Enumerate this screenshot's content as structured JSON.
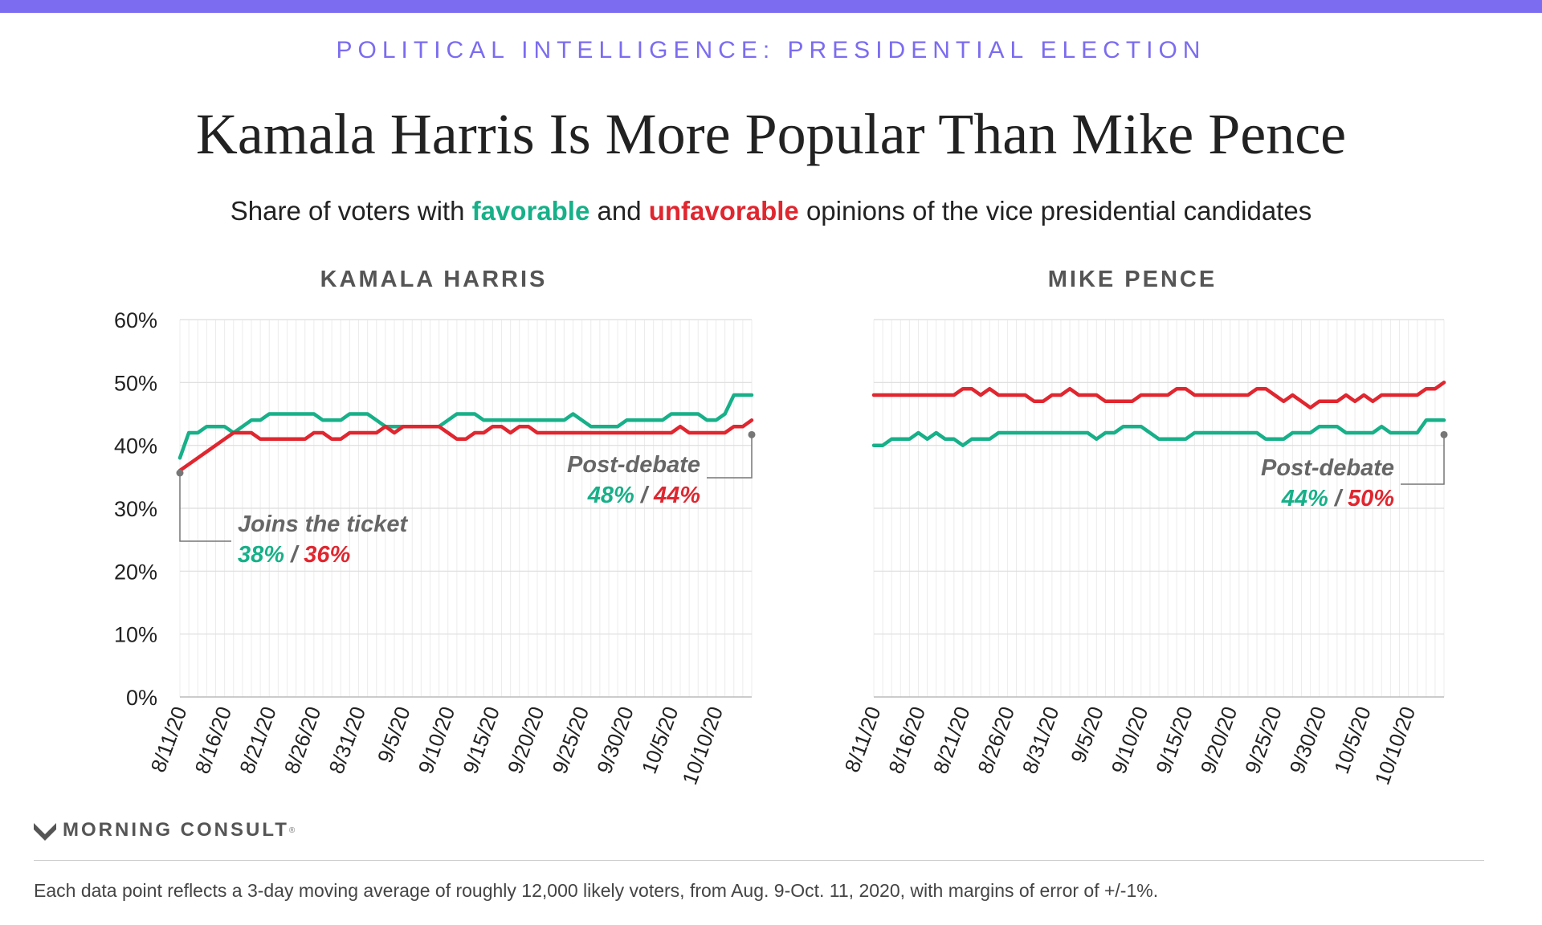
{
  "header": {
    "kicker": "POLITICAL INTELLIGENCE: PRESIDENTIAL ELECTION",
    "title": "Kamala Harris Is More Popular Than Mike Pence",
    "subtitle_pre": "Share of voters with ",
    "subtitle_fav": "favorable",
    "subtitle_mid": " and ",
    "subtitle_unfav": "unfavorable",
    "subtitle_post": " opinions of the vice presidential candidates"
  },
  "colors": {
    "favorable": "#17b088",
    "unfavorable": "#e0262f",
    "accent": "#7b6cf0",
    "annotation": "#666666"
  },
  "chart_data": [
    {
      "type": "line",
      "title": "KAMALA HARRIS",
      "ylim": [
        0,
        60
      ],
      "yticks": [
        "0%",
        "10%",
        "20%",
        "30%",
        "40%",
        "50%",
        "60%"
      ],
      "x_ticklabels": [
        "8/11/20",
        "8/16/20",
        "8/21/20",
        "8/26/20",
        "8/31/20",
        "9/5/20",
        "9/10/20",
        "9/15/20",
        "9/20/20",
        "9/25/20",
        "9/30/20",
        "10/5/20",
        "10/10/20"
      ],
      "grid": true,
      "series": [
        {
          "name": "favorable",
          "values": [
            38,
            42,
            42,
            43,
            43,
            43,
            42,
            43,
            44,
            44,
            45,
            45,
            45,
            45,
            45,
            45,
            44,
            44,
            44,
            45,
            45,
            45,
            44,
            43,
            43,
            43,
            43,
            43,
            43,
            43,
            44,
            45,
            45,
            45,
            44,
            44,
            44,
            44,
            44,
            44,
            44,
            44,
            44,
            44,
            45,
            44,
            43,
            43,
            43,
            43,
            44,
            44,
            44,
            44,
            44,
            45,
            45,
            45,
            45,
            44,
            44,
            45,
            48,
            48,
            48
          ]
        },
        {
          "name": "unfavorable",
          "values": [
            36,
            37,
            38,
            39,
            40,
            41,
            42,
            42,
            42,
            41,
            41,
            41,
            41,
            41,
            41,
            42,
            42,
            41,
            41,
            42,
            42,
            42,
            42,
            43,
            42,
            43,
            43,
            43,
            43,
            43,
            42,
            41,
            41,
            42,
            42,
            43,
            43,
            42,
            43,
            43,
            42,
            42,
            42,
            42,
            42,
            42,
            42,
            42,
            42,
            42,
            42,
            42,
            42,
            42,
            42,
            42,
            43,
            42,
            42,
            42,
            42,
            42,
            43,
            43,
            44
          ]
        }
      ],
      "annotations": [
        {
          "label": "Joins the ticket",
          "favorable": "38%",
          "separator": "/",
          "unfavorable": "36%"
        },
        {
          "label": "Post-debate",
          "favorable": "48%",
          "separator": "/",
          "unfavorable": "44%"
        }
      ]
    },
    {
      "type": "line",
      "title": "MIKE PENCE",
      "ylim": [
        0,
        60
      ],
      "yticks": [
        "0%",
        "10%",
        "20%",
        "30%",
        "40%",
        "50%",
        "60%"
      ],
      "x_ticklabels": [
        "8/11/20",
        "8/16/20",
        "8/21/20",
        "8/26/20",
        "8/31/20",
        "9/5/20",
        "9/10/20",
        "9/15/20",
        "9/20/20",
        "9/25/20",
        "9/30/20",
        "10/5/20",
        "10/10/20"
      ],
      "grid": true,
      "series": [
        {
          "name": "favorable",
          "values": [
            40,
            40,
            41,
            41,
            41,
            42,
            41,
            42,
            41,
            41,
            40,
            41,
            41,
            41,
            42,
            42,
            42,
            42,
            42,
            42,
            42,
            42,
            42,
            42,
            42,
            41,
            42,
            42,
            43,
            43,
            43,
            42,
            41,
            41,
            41,
            41,
            42,
            42,
            42,
            42,
            42,
            42,
            42,
            42,
            41,
            41,
            41,
            42,
            42,
            42,
            43,
            43,
            43,
            42,
            42,
            42,
            42,
            43,
            42,
            42,
            42,
            42,
            44,
            44,
            44
          ]
        },
        {
          "name": "unfavorable",
          "values": [
            48,
            48,
            48,
            48,
            48,
            48,
            48,
            48,
            48,
            48,
            49,
            49,
            48,
            49,
            48,
            48,
            48,
            48,
            47,
            47,
            48,
            48,
            49,
            48,
            48,
            48,
            47,
            47,
            47,
            47,
            48,
            48,
            48,
            48,
            49,
            49,
            48,
            48,
            48,
            48,
            48,
            48,
            48,
            49,
            49,
            48,
            47,
            48,
            47,
            46,
            47,
            47,
            47,
            48,
            47,
            48,
            47,
            48,
            48,
            48,
            48,
            48,
            49,
            49,
            50
          ]
        }
      ],
      "annotations": [
        {
          "label": "Post-debate",
          "favorable": "44%",
          "separator": "/",
          "unfavorable": "50%"
        }
      ]
    }
  ],
  "footer": {
    "logo_text": "MORNING CONSULT",
    "logo_mark": "®",
    "footnote": "Each data point reflects a 3-day moving average of roughly 12,000 likely voters, from Aug. 9-Oct. 11, 2020, with margins of error of +/-1%."
  }
}
